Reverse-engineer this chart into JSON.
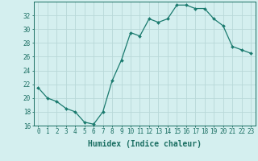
{
  "x": [
    0,
    1,
    2,
    3,
    4,
    5,
    6,
    7,
    8,
    9,
    10,
    11,
    12,
    13,
    14,
    15,
    16,
    17,
    18,
    19,
    20,
    21,
    22,
    23
  ],
  "y": [
    21.5,
    20.0,
    19.5,
    18.5,
    18.0,
    16.5,
    16.2,
    18.0,
    22.5,
    25.5,
    29.5,
    29.0,
    31.5,
    31.0,
    31.5,
    33.5,
    33.5,
    33.0,
    33.0,
    31.5,
    30.5,
    27.5,
    27.0,
    26.5
  ],
  "line_color": "#1a7a6e",
  "marker": "D",
  "marker_size": 2.0,
  "bg_color": "#d4efef",
  "grid_color": "#b8d8d8",
  "xlabel": "Humidex (Indice chaleur)",
  "ylim": [
    16,
    34
  ],
  "xlim": [
    -0.5,
    23.5
  ],
  "yticks": [
    16,
    18,
    20,
    22,
    24,
    26,
    28,
    30,
    32
  ],
  "xticks": [
    0,
    1,
    2,
    3,
    4,
    5,
    6,
    7,
    8,
    9,
    10,
    11,
    12,
    13,
    14,
    15,
    16,
    17,
    18,
    19,
    20,
    21,
    22,
    23
  ],
  "tick_color": "#1a6e62",
  "label_color": "#1a6e62",
  "xlabel_fontsize": 7,
  "tick_fontsize": 5.5,
  "linewidth": 0.9
}
